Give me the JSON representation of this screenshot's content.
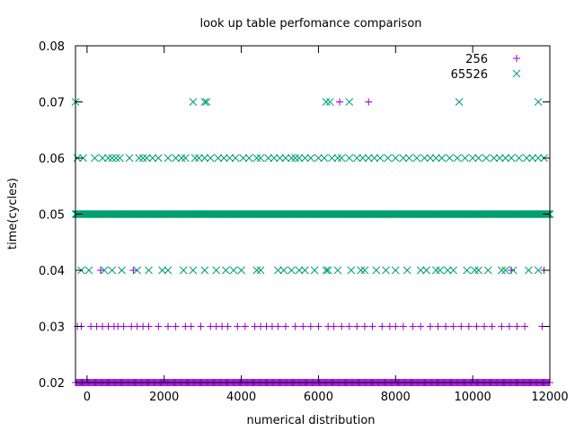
{
  "chart_data": {
    "type": "scatter",
    "title": "look up table perfomance comparison",
    "xlabel": "numerical distribution",
    "ylabel": "time(cycles)",
    "xlim": [
      -300,
      12000
    ],
    "ylim": [
      0.02,
      0.08
    ],
    "xticks": [
      0,
      2000,
      4000,
      6000,
      8000,
      10000,
      12000
    ],
    "yticks": [
      0.02,
      0.03,
      0.04,
      0.05,
      0.06,
      0.07,
      0.08
    ],
    "xtick_labels": [
      "0",
      "2000",
      "4000",
      "6000",
      "8000",
      "10000",
      "12000"
    ],
    "ytick_labels": [
      "0.02",
      "0.03",
      "0.04",
      "0.05",
      "0.06",
      "0.07",
      "0.08"
    ],
    "grid": false,
    "legend": "top-right",
    "series": [
      {
        "name": "256",
        "marker": "plus",
        "color": "#9400d3",
        "dense_levels": [
          0.02
        ],
        "points": [
          [
            -250,
            0.03
          ],
          [
            -150,
            0.03
          ],
          [
            100,
            0.03
          ],
          [
            250,
            0.03
          ],
          [
            400,
            0.03
          ],
          [
            550,
            0.03
          ],
          [
            700,
            0.03
          ],
          [
            800,
            0.03
          ],
          [
            950,
            0.03
          ],
          [
            1150,
            0.03
          ],
          [
            1300,
            0.03
          ],
          [
            1450,
            0.03
          ],
          [
            1600,
            0.03
          ],
          [
            1850,
            0.03
          ],
          [
            2100,
            0.03
          ],
          [
            2300,
            0.03
          ],
          [
            2550,
            0.03
          ],
          [
            2700,
            0.03
          ],
          [
            2950,
            0.03
          ],
          [
            3200,
            0.03
          ],
          [
            3350,
            0.03
          ],
          [
            3500,
            0.03
          ],
          [
            3650,
            0.03
          ],
          [
            3900,
            0.03
          ],
          [
            4100,
            0.03
          ],
          [
            4350,
            0.03
          ],
          [
            4500,
            0.03
          ],
          [
            4650,
            0.03
          ],
          [
            4800,
            0.03
          ],
          [
            4950,
            0.03
          ],
          [
            5150,
            0.03
          ],
          [
            5400,
            0.03
          ],
          [
            5600,
            0.03
          ],
          [
            5800,
            0.03
          ],
          [
            6000,
            0.03
          ],
          [
            6250,
            0.03
          ],
          [
            6400,
            0.03
          ],
          [
            6600,
            0.03
          ],
          [
            6800,
            0.03
          ],
          [
            7000,
            0.03
          ],
          [
            7200,
            0.03
          ],
          [
            7400,
            0.03
          ],
          [
            7650,
            0.03
          ],
          [
            7850,
            0.03
          ],
          [
            8000,
            0.03
          ],
          [
            8200,
            0.03
          ],
          [
            8450,
            0.03
          ],
          [
            8650,
            0.03
          ],
          [
            8900,
            0.03
          ],
          [
            9100,
            0.03
          ],
          [
            9300,
            0.03
          ],
          [
            9500,
            0.03
          ],
          [
            9700,
            0.03
          ],
          [
            9900,
            0.03
          ],
          [
            10100,
            0.03
          ],
          [
            10300,
            0.03
          ],
          [
            10500,
            0.03
          ],
          [
            10750,
            0.03
          ],
          [
            10950,
            0.03
          ],
          [
            11150,
            0.03
          ],
          [
            11350,
            0.03
          ],
          [
            11800,
            0.03
          ],
          [
            350,
            0.04
          ],
          [
            1200,
            0.04
          ],
          [
            11000,
            0.04
          ],
          [
            11850,
            0.04
          ],
          [
            6550,
            0.07
          ],
          [
            7300,
            0.07
          ]
        ]
      },
      {
        "name": "65526",
        "marker": "cross",
        "color": "#009e73",
        "dense_levels": [
          0.05
        ],
        "points": [
          [
            -300,
            0.07
          ],
          [
            2750,
            0.07
          ],
          [
            3050,
            0.07
          ],
          [
            3100,
            0.07
          ],
          [
            6200,
            0.07
          ],
          [
            6300,
            0.07
          ],
          [
            6800,
            0.07
          ],
          [
            9650,
            0.07
          ],
          [
            11700,
            0.07
          ],
          [
            -250,
            0.06
          ],
          [
            -100,
            0.06
          ],
          [
            200,
            0.06
          ],
          [
            400,
            0.06
          ],
          [
            550,
            0.06
          ],
          [
            650,
            0.06
          ],
          [
            750,
            0.06
          ],
          [
            850,
            0.06
          ],
          [
            1100,
            0.06
          ],
          [
            1350,
            0.06
          ],
          [
            1450,
            0.06
          ],
          [
            1550,
            0.06
          ],
          [
            1700,
            0.06
          ],
          [
            1850,
            0.06
          ],
          [
            2100,
            0.06
          ],
          [
            2300,
            0.06
          ],
          [
            2450,
            0.06
          ],
          [
            2550,
            0.06
          ],
          [
            2800,
            0.06
          ],
          [
            2900,
            0.06
          ],
          [
            3050,
            0.06
          ],
          [
            3200,
            0.06
          ],
          [
            3400,
            0.06
          ],
          [
            3550,
            0.06
          ],
          [
            3700,
            0.06
          ],
          [
            3850,
            0.06
          ],
          [
            4050,
            0.06
          ],
          [
            4200,
            0.06
          ],
          [
            4400,
            0.06
          ],
          [
            4500,
            0.06
          ],
          [
            4700,
            0.06
          ],
          [
            4850,
            0.06
          ],
          [
            5000,
            0.06
          ],
          [
            5150,
            0.06
          ],
          [
            5300,
            0.06
          ],
          [
            5400,
            0.06
          ],
          [
            5500,
            0.06
          ],
          [
            5650,
            0.06
          ],
          [
            5800,
            0.06
          ],
          [
            6000,
            0.06
          ],
          [
            6150,
            0.06
          ],
          [
            6350,
            0.06
          ],
          [
            6500,
            0.06
          ],
          [
            6600,
            0.06
          ],
          [
            6800,
            0.06
          ],
          [
            7000,
            0.06
          ],
          [
            7150,
            0.06
          ],
          [
            7300,
            0.06
          ],
          [
            7450,
            0.06
          ],
          [
            7600,
            0.06
          ],
          [
            7800,
            0.06
          ],
          [
            8000,
            0.06
          ],
          [
            8200,
            0.06
          ],
          [
            8350,
            0.06
          ],
          [
            8550,
            0.06
          ],
          [
            8750,
            0.06
          ],
          [
            8900,
            0.06
          ],
          [
            9050,
            0.06
          ],
          [
            9200,
            0.06
          ],
          [
            9400,
            0.06
          ],
          [
            9600,
            0.06
          ],
          [
            9800,
            0.06
          ],
          [
            10000,
            0.06
          ],
          [
            10150,
            0.06
          ],
          [
            10350,
            0.06
          ],
          [
            10550,
            0.06
          ],
          [
            10700,
            0.06
          ],
          [
            10850,
            0.06
          ],
          [
            11000,
            0.06
          ],
          [
            11200,
            0.06
          ],
          [
            11400,
            0.06
          ],
          [
            11550,
            0.06
          ],
          [
            11700,
            0.06
          ],
          [
            11850,
            0.06
          ],
          [
            -150,
            0.04
          ],
          [
            50,
            0.04
          ],
          [
            450,
            0.04
          ],
          [
            650,
            0.04
          ],
          [
            900,
            0.04
          ],
          [
            1300,
            0.04
          ],
          [
            1600,
            0.04
          ],
          [
            1950,
            0.04
          ],
          [
            2100,
            0.04
          ],
          [
            2500,
            0.04
          ],
          [
            2750,
            0.04
          ],
          [
            3050,
            0.04
          ],
          [
            3350,
            0.04
          ],
          [
            3600,
            0.04
          ],
          [
            3800,
            0.04
          ],
          [
            4000,
            0.04
          ],
          [
            4400,
            0.04
          ],
          [
            4500,
            0.04
          ],
          [
            4950,
            0.04
          ],
          [
            5100,
            0.04
          ],
          [
            5300,
            0.04
          ],
          [
            5500,
            0.04
          ],
          [
            5650,
            0.04
          ],
          [
            5900,
            0.04
          ],
          [
            6200,
            0.04
          ],
          [
            6250,
            0.04
          ],
          [
            6500,
            0.04
          ],
          [
            6850,
            0.04
          ],
          [
            7100,
            0.04
          ],
          [
            7200,
            0.04
          ],
          [
            7500,
            0.04
          ],
          [
            7750,
            0.04
          ],
          [
            8000,
            0.04
          ],
          [
            8300,
            0.04
          ],
          [
            8650,
            0.04
          ],
          [
            8800,
            0.04
          ],
          [
            9050,
            0.04
          ],
          [
            9150,
            0.04
          ],
          [
            9350,
            0.04
          ],
          [
            9500,
            0.04
          ],
          [
            9850,
            0.04
          ],
          [
            10050,
            0.04
          ],
          [
            10150,
            0.04
          ],
          [
            10400,
            0.04
          ],
          [
            10750,
            0.04
          ],
          [
            10850,
            0.04
          ],
          [
            11050,
            0.04
          ],
          [
            11450,
            0.04
          ],
          [
            11700,
            0.04
          ]
        ]
      }
    ]
  }
}
